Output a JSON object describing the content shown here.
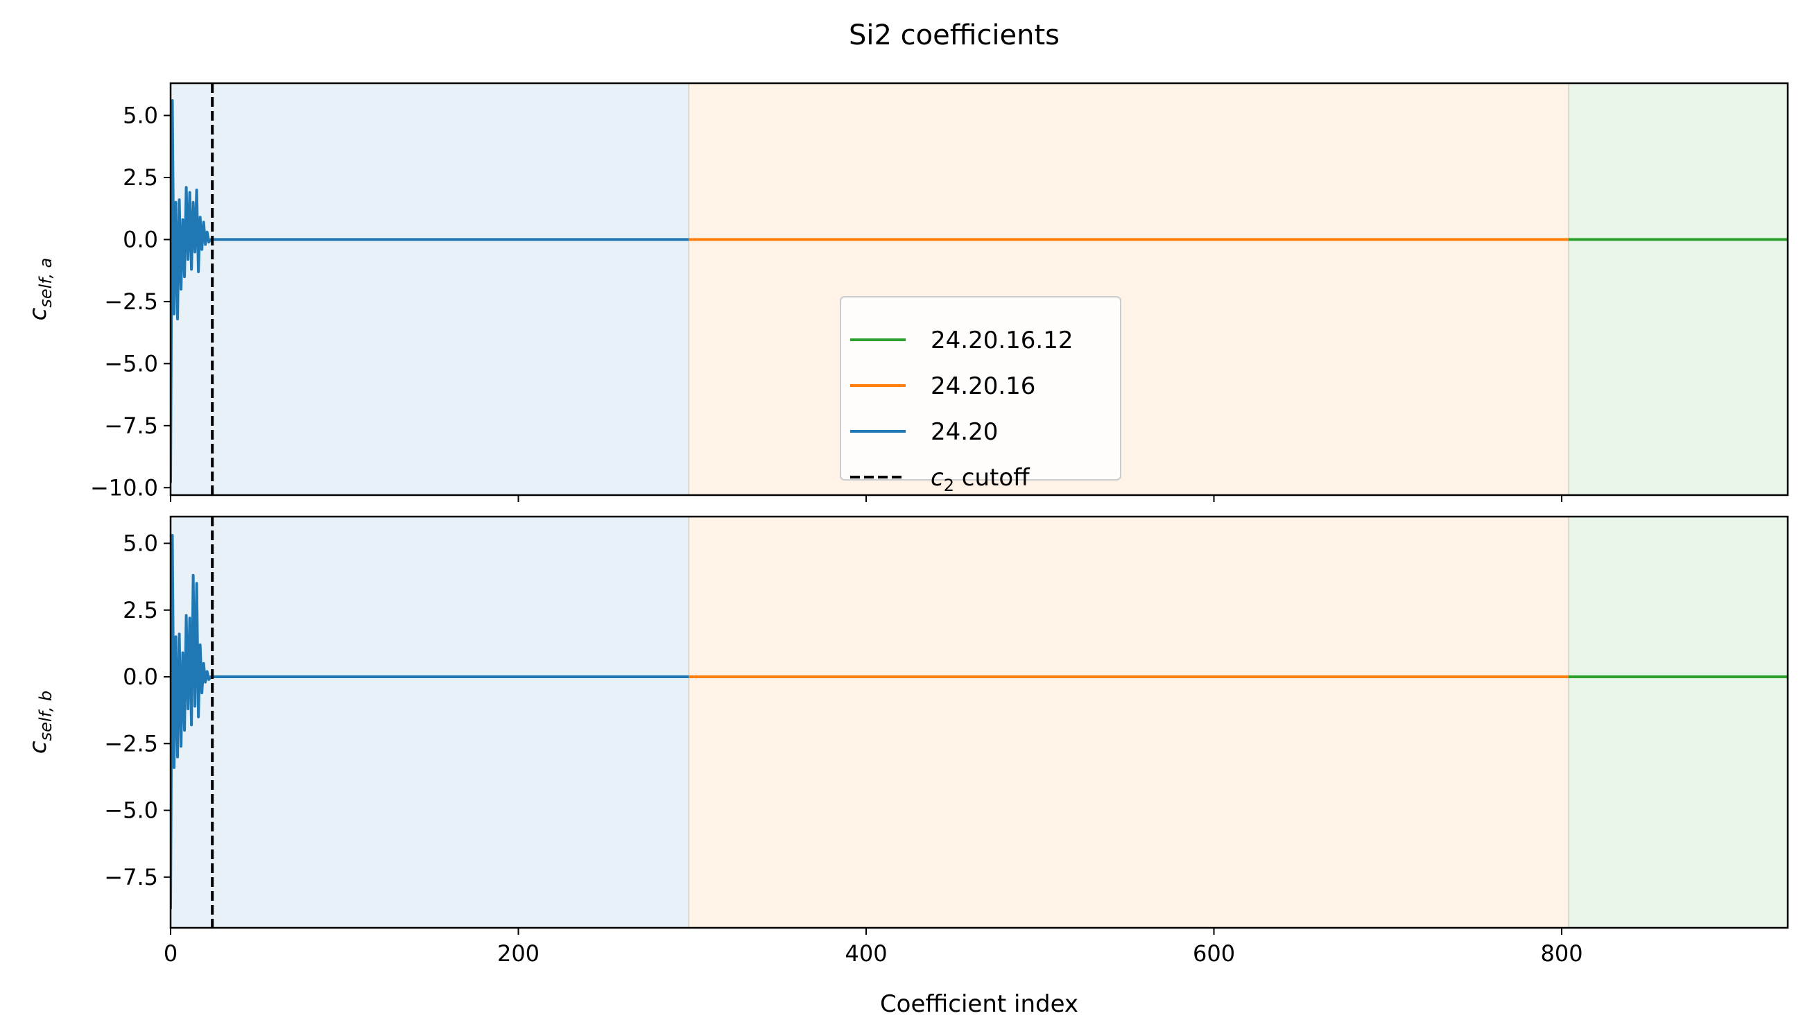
{
  "chart_data": {
    "title": "Si2 coefficients",
    "xlabel": "Coefficient index",
    "xlim": [
      0,
      930
    ],
    "xticks": [
      0,
      200,
      400,
      600,
      800
    ],
    "cutoff_x": 24,
    "regions": [
      {
        "from": 0,
        "to": 298,
        "color": "#1f77b4"
      },
      {
        "from": 298,
        "to": 804,
        "color": "#ff7f0e"
      },
      {
        "from": 804,
        "to": 930,
        "color": "#2ca02c"
      }
    ],
    "legend": {
      "placement": "center",
      "entries": [
        {
          "label": "24.20.16.12",
          "color": "#2ca02c",
          "style": "solid"
        },
        {
          "label": "24.20.16",
          "color": "#ff7f0e",
          "style": "solid"
        },
        {
          "label": "24.20",
          "color": "#1f77b4",
          "style": "solid"
        },
        {
          "label_var": "c",
          "label_sub": "2",
          "label_rest": " cutoff",
          "color": "#000000",
          "style": "dashed"
        }
      ]
    },
    "panels": [
      {
        "type": "line",
        "ylabel": {
          "base": "c",
          "sub": "self, a"
        },
        "ylim": [
          -10.3,
          6.3
        ],
        "yticks": [
          5.0,
          2.5,
          0.0,
          -2.5,
          -5.0,
          -7.5,
          -10.0
        ],
        "ytick_labels": [
          "5.0",
          "2.5",
          "0.0",
          "−2.5",
          "−5.0",
          "−7.5",
          "−10.0"
        ],
        "series": [
          {
            "name": "24.20",
            "color": "#1f77b4",
            "x": [
              0,
              1,
              2,
              3,
              4,
              5,
              6,
              7,
              8,
              9,
              10,
              11,
              12,
              13,
              14,
              15,
              16,
              17,
              18,
              19,
              20,
              21,
              22,
              23,
              24,
              298
            ],
            "y": [
              -9.8,
              5.6,
              -3.0,
              1.5,
              -3.2,
              1.6,
              -2.0,
              0.8,
              -1.5,
              2.1,
              -0.8,
              1.9,
              -1.2,
              1.5,
              -0.5,
              2.0,
              -1.3,
              0.9,
              -0.4,
              0.7,
              -0.2,
              0.3,
              -0.1,
              0.0,
              0.0,
              0.0
            ]
          },
          {
            "name": "24.20.16",
            "color": "#ff7f0e",
            "x": [
              298,
              804
            ],
            "y": [
              0.0,
              0.0
            ]
          },
          {
            "name": "24.20.16.12",
            "color": "#2ca02c",
            "x": [
              804,
              930
            ],
            "y": [
              0.0,
              0.0
            ]
          }
        ]
      },
      {
        "type": "line",
        "ylabel": {
          "base": "c",
          "sub": "self, b"
        },
        "ylim": [
          -9.4,
          6.0
        ],
        "yticks": [
          5.0,
          2.5,
          0.0,
          -2.5,
          -5.0,
          -7.5
        ],
        "ytick_labels": [
          "5.0",
          "2.5",
          "0.0",
          "−2.5",
          "−5.0",
          "−7.5"
        ],
        "series": [
          {
            "name": "24.20",
            "color": "#1f77b4",
            "x": [
              0,
              1,
              2,
              3,
              4,
              5,
              6,
              7,
              8,
              9,
              10,
              11,
              12,
              13,
              14,
              15,
              16,
              17,
              18,
              19,
              20,
              21,
              22,
              23,
              24,
              298
            ],
            "y": [
              -8.7,
              5.3,
              -3.4,
              1.5,
              -3.0,
              1.6,
              -2.6,
              0.9,
              -2.0,
              2.3,
              -1.2,
              2.2,
              -1.8,
              3.8,
              -1.1,
              3.5,
              -1.5,
              1.2,
              -0.6,
              0.5,
              -0.2,
              0.2,
              -0.1,
              0.0,
              0.0,
              0.0
            ]
          },
          {
            "name": "24.20.16",
            "color": "#ff7f0e",
            "x": [
              298,
              804
            ],
            "y": [
              0.0,
              0.0
            ]
          },
          {
            "name": "24.20.16.12",
            "color": "#2ca02c",
            "x": [
              804,
              930
            ],
            "y": [
              0.0,
              0.0
            ]
          }
        ]
      }
    ]
  }
}
